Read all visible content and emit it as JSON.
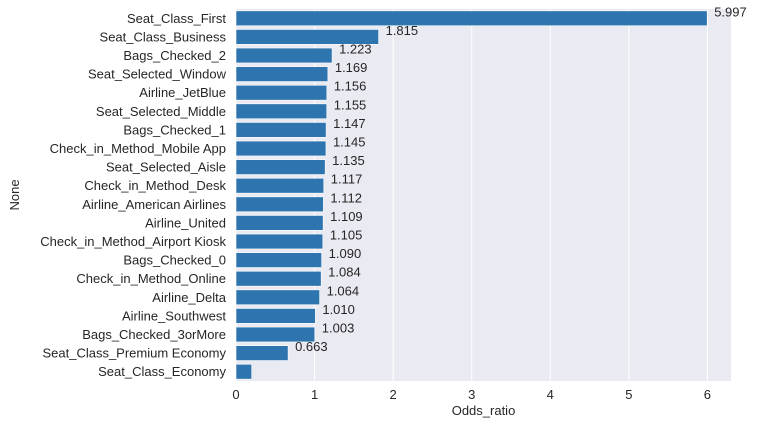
{
  "chart_data": {
    "type": "bar",
    "orientation": "horizontal",
    "xlabel": "Odds_ratio",
    "ylabel": "None",
    "xlim": [
      0,
      6.3
    ],
    "xticks": [
      0,
      1,
      2,
      3,
      4,
      5,
      6
    ],
    "grid": true,
    "bar_color": "#2e75b0",
    "background_color": "#eaeaf2",
    "categories": [
      "Seat_Class_First",
      "Seat_Class_Business",
      "Bags_Checked_2",
      "Seat_Selected_Window",
      "Airline_JetBlue",
      "Seat_Selected_Middle",
      "Bags_Checked_1",
      "Check_in_Method_Mobile App",
      "Seat_Selected_Aisle",
      "Check_in_Method_Desk",
      "Airline_American Airlines",
      "Airline_United",
      "Check_in_Method_Airport Kiosk",
      "Bags_Checked_0",
      "Check_in_Method_Online",
      "Airline_Delta",
      "Airline_Southwest",
      "Bags_Checked_3orMore",
      "Seat_Class_Premium Economy",
      "Seat_Class_Economy"
    ],
    "values": [
      5.997,
      1.815,
      1.223,
      1.169,
      1.156,
      1.155,
      1.147,
      1.145,
      1.135,
      1.117,
      1.112,
      1.109,
      1.105,
      1.09,
      1.084,
      1.064,
      1.01,
      1.003,
      0.663,
      0.2
    ],
    "value_labels": [
      "5.997",
      "1.815",
      "1.223",
      "1.169",
      "1.156",
      "1.155",
      "1.147",
      "1.145",
      "1.135",
      "1.117",
      "1.112",
      "1.109",
      "1.105",
      "1.090",
      "1.084",
      "1.064",
      "1.010",
      "1.003",
      "0.663",
      ""
    ]
  }
}
